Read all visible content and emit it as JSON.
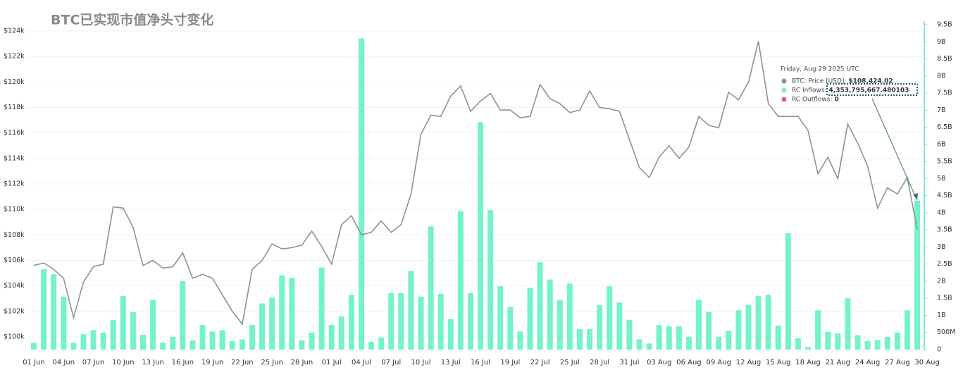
{
  "chart_data": {
    "type": "bar-line",
    "title": "BTC已实现市值净头寸变化",
    "categories": [
      "01 Jun",
      null,
      null,
      "04 Jun",
      null,
      null,
      "07 Jun",
      null,
      null,
      "10 Jun",
      null,
      null,
      "13 Jun",
      null,
      null,
      "16 Jun",
      null,
      null,
      "19 Jun",
      null,
      null,
      "22 Jun",
      null,
      null,
      "25 Jun",
      null,
      null,
      "28 Jun",
      null,
      null,
      "01 Jul",
      null,
      null,
      "04 Jul",
      null,
      null,
      "07 Jul",
      null,
      null,
      "10 Jul",
      null,
      null,
      "13 Jul",
      null,
      null,
      "16 Jul",
      null,
      null,
      "19 Jul",
      null,
      null,
      "22 Jul",
      null,
      null,
      "25 Jul",
      null,
      null,
      "28 Jul",
      null,
      null,
      "31 Jul",
      null,
      null,
      "03 Aug",
      null,
      null,
      "06 Aug",
      null,
      null,
      "09 Aug",
      null,
      null,
      "12 Aug",
      null,
      null,
      "15 Aug",
      null,
      null,
      "18 Aug",
      null,
      null,
      "21 Aug",
      null,
      null,
      "24 Aug",
      null,
      null,
      "27 Aug",
      null,
      null,
      "30 Aug"
    ],
    "series": [
      {
        "name": "BTC: Price [USD]",
        "type": "line",
        "axis": "y",
        "color": "#8c9296",
        "values": [
          105600,
          105800,
          105300,
          104600,
          101500,
          104300,
          105500,
          105700,
          110200,
          110100,
          108600,
          105600,
          106000,
          105400,
          105500,
          106600,
          104600,
          104900,
          104600,
          103300,
          102000,
          101000,
          105300,
          106000,
          107300,
          106900,
          107000,
          107200,
          108300,
          107100,
          105700,
          108800,
          109500,
          108000,
          108200,
          109100,
          108200,
          108800,
          111200,
          115900,
          117400,
          117300,
          118900,
          119700,
          117700,
          118500,
          119100,
          117800,
          117800,
          117200,
          117300,
          119800,
          118700,
          118300,
          117600,
          117800,
          119300,
          118000,
          117900,
          117700,
          115500,
          113300,
          112500,
          114100,
          115000,
          114000,
          114900,
          117300,
          116600,
          116400,
          119200,
          118600,
          120000,
          123200,
          118300,
          117300,
          117300,
          117300,
          116200,
          112800,
          114100,
          112400,
          116700,
          115200,
          113400,
          110100,
          111700,
          111200,
          112500,
          108424.02,
          null
        ]
      },
      {
        "name": "RC Inflows",
        "type": "bar",
        "axis": "y2",
        "color": "#74f2cc",
        "values": [
          200000000,
          2350000000,
          2200000000,
          1550000000,
          200000000,
          450000000,
          570000000,
          500000000,
          870000000,
          1570000000,
          1100000000,
          430000000,
          1450000000,
          200000000,
          370000000,
          2000000000,
          270000000,
          720000000,
          530000000,
          570000000,
          250000000,
          300000000,
          720000000,
          1350000000,
          1520000000,
          2170000000,
          2100000000,
          270000000,
          500000000,
          2400000000,
          720000000,
          970000000,
          1600000000,
          9100000000,
          230000000,
          350000000,
          1650000000,
          1650000000,
          2300000000,
          1550000000,
          3600000000,
          1630000000,
          890000000,
          4050000000,
          1650000000,
          6650000000,
          4080000000,
          1850000000,
          1250000000,
          530000000,
          1800000000,
          2550000000,
          2050000000,
          1450000000,
          1930000000,
          600000000,
          600000000,
          1300000000,
          1850000000,
          1380000000,
          870000000,
          300000000,
          180000000,
          720000000,
          680000000,
          680000000,
          370000000,
          1450000000,
          1100000000,
          370000000,
          550000000,
          1150000000,
          1300000000,
          1570000000,
          1600000000,
          700000000,
          3400000000,
          330000000,
          80000000,
          1150000000,
          520000000,
          470000000,
          1500000000,
          420000000,
          250000000,
          280000000,
          370000000,
          500000000,
          1150000000,
          4353795667.480103,
          null
        ]
      }
    ],
    "ylim": [
      99000,
      124500
    ],
    "yticks": [
      {
        "value": 100000,
        "label": "$100k"
      },
      {
        "value": 102000,
        "label": "$102k"
      },
      {
        "value": 104000,
        "label": "$104k"
      },
      {
        "value": 106000,
        "label": "$106k"
      },
      {
        "value": 108000,
        "label": "$108k"
      },
      {
        "value": 110000,
        "label": "$110k"
      },
      {
        "value": 112000,
        "label": "$112k"
      },
      {
        "value": 114000,
        "label": "$114k"
      },
      {
        "value": 116000,
        "label": "$116k"
      },
      {
        "value": 118000,
        "label": "$118k"
      },
      {
        "value": 120000,
        "label": "$120k"
      },
      {
        "value": 122000,
        "label": "$122k"
      },
      {
        "value": 124000,
        "label": "$124k"
      }
    ],
    "y2lim": [
      0,
      9500000000
    ],
    "y2ticks": [
      0,
      {
        "value": 500000000,
        "label": "500M"
      },
      {
        "value": 1000000000,
        "label": "1B"
      },
      {
        "value": 1500000000,
        "label": "1.5B"
      },
      {
        "value": 2000000000,
        "label": "2B"
      },
      {
        "value": 2500000000,
        "label": "2.5B"
      },
      {
        "value": 3000000000,
        "label": "3B"
      },
      {
        "value": 3500000000,
        "label": "3.5B"
      },
      {
        "value": 4000000000,
        "label": "4B"
      },
      {
        "value": 4500000000,
        "label": "4.5B"
      },
      {
        "value": 5000000000,
        "label": "5B"
      },
      {
        "value": 5500000000,
        "label": "5.5B"
      },
      {
        "value": 6000000000,
        "label": "6B"
      },
      {
        "value": 6500000000,
        "label": "6.5B"
      },
      {
        "value": 7000000000,
        "label": "7B"
      },
      {
        "value": 7500000000,
        "label": "7.5B"
      },
      {
        "value": 8000000000,
        "label": "8B"
      },
      {
        "value": 8500000000,
        "label": "8.5B"
      },
      {
        "value": 9000000000,
        "label": "9B"
      },
      {
        "value": 9500000000,
        "label": "9.5B"
      }
    ],
    "grid": true,
    "tooltip": {
      "date": "Friday, Aug 29 2025 UTC",
      "items": [
        {
          "name": "BTC: Price [USD]",
          "color": "#8c9296",
          "value": "$108,424.02"
        },
        {
          "name": "RC Inflows",
          "color": "#74f2cc",
          "value": "4,353,795,667.480103"
        },
        {
          "name": "RC Outflows",
          "color": "#e8636b",
          "value": "0"
        }
      ]
    }
  }
}
